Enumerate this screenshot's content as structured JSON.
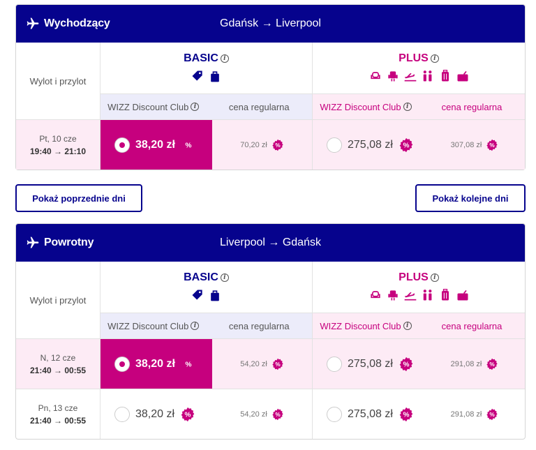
{
  "outbound": {
    "direction": "Wychodzący",
    "route": "Gdańsk → Liverpool",
    "label_col": "Wylot i przylot",
    "basic_name": "BASIC",
    "plus_name": "PLUS",
    "club_label": "WIZZ Discount Club",
    "regular_label": "cena regularna",
    "rows": [
      {
        "day": "Pt, 10 cze",
        "times": "19:40 → 21:10",
        "basic_club": "38,20 zł",
        "basic_regular": "70,20 zł",
        "plus_club": "275,08 zł",
        "plus_regular": "307,08 zł",
        "selected": "basic"
      }
    ]
  },
  "inbound": {
    "direction": "Powrotny",
    "route": "Liverpool → Gdańsk",
    "label_col": "Wylot i przylot",
    "basic_name": "BASIC",
    "plus_name": "PLUS",
    "club_label": "WIZZ Discount Club",
    "regular_label": "cena regularna",
    "rows": [
      {
        "day": "N, 12 cze",
        "times": "21:40 → 00:55",
        "basic_club": "38,20 zł",
        "basic_regular": "54,20 zł",
        "plus_club": "275,08 zł",
        "plus_regular": "291,08 zł",
        "selected": "basic"
      },
      {
        "day": "Pn, 13 cze",
        "times": "21:40 → 00:55",
        "basic_club": "38,20 zł",
        "basic_regular": "54,20 zł",
        "plus_club": "275,08 zł",
        "plus_regular": "291,08 zł",
        "selected": "none"
      }
    ]
  },
  "buttons": {
    "prev_days": "Pokaż poprzednie dni",
    "next_days": "Pokaż kolejne dni"
  },
  "icons": {
    "plane": "plane-icon",
    "info": "info-icon",
    "discount": "percent-badge-icon",
    "basic_features": [
      "tag-icon",
      "small-bag-icon"
    ],
    "plus_features": [
      "seat-icon",
      "seat-select-icon",
      "check-in-icon",
      "priority-boarding-icon",
      "trolley-bag-icon",
      "checked-bag-icon"
    ]
  },
  "colors": {
    "header_bg": "#06038d",
    "accent": "#c6007e",
    "basic_tint": "#ececfa",
    "plus_tint": "#fdebf5"
  }
}
